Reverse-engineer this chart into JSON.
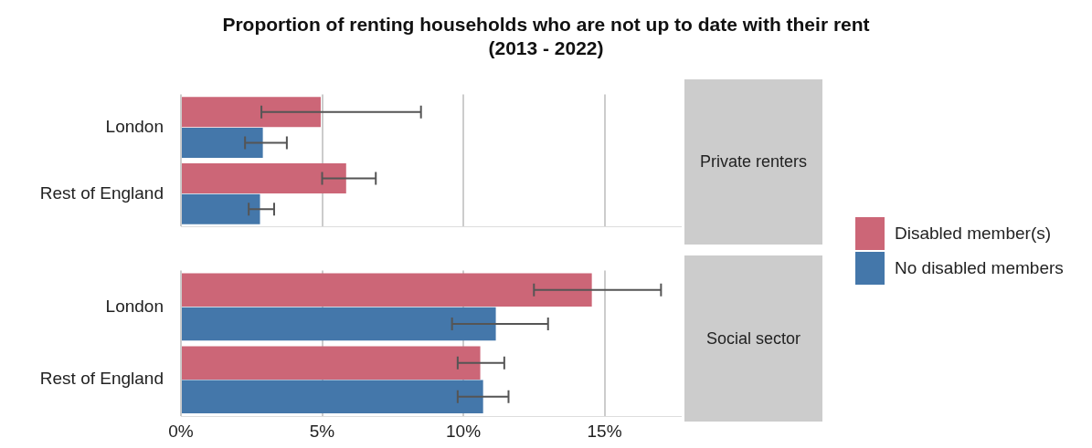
{
  "chart_data": [
    {
      "type": "bar",
      "orientation": "horizontal",
      "title": "Proportion of renting households who are not up to date with their rent\n(2013 - 2022)",
      "annotations": [
        "Private renters"
      ],
      "categories": [
        "London",
        "Rest of England"
      ],
      "series": [
        {
          "name": "Disabled member(s)",
          "color": "#cc6677",
          "values": [
            4.95,
            5.85
          ],
          "errors": [
            [
              2.85,
              8.5
            ],
            [
              5.0,
              6.9
            ]
          ]
        },
        {
          "name": "No disabled members",
          "color": "#4477aa",
          "values": [
            2.9,
            2.8
          ],
          "errors": [
            [
              2.27,
              3.75
            ],
            [
              2.4,
              3.3
            ]
          ]
        }
      ],
      "xlim": [
        0,
        17.7
      ],
      "xticks": [
        0,
        5,
        10,
        15
      ],
      "grid": "x",
      "legend": "right",
      "tick_labels": "y"
    },
    {
      "type": "bar",
      "orientation": "horizontal",
      "annotations": [
        "Social sector"
      ],
      "categories": [
        "London",
        "Rest of England"
      ],
      "series": [
        {
          "color": "#cc6677",
          "values": [
            14.55,
            10.6
          ],
          "errors": [
            [
              12.5,
              17.0
            ],
            [
              9.8,
              11.45
            ]
          ]
        },
        {
          "color": "#4477aa",
          "values": [
            11.15,
            10.7
          ],
          "errors": [
            [
              9.6,
              13.0
            ],
            [
              9.8,
              11.6
            ]
          ]
        }
      ],
      "xlim": [
        0,
        17.7
      ],
      "xticks": [
        {
          "value": 0,
          "label": "0%"
        },
        {
          "value": 5,
          "label": "5%"
        },
        {
          "value": 10,
          "label": "10%"
        },
        {
          "value": 15,
          "label": "15%"
        }
      ],
      "grid": "x"
    }
  ]
}
